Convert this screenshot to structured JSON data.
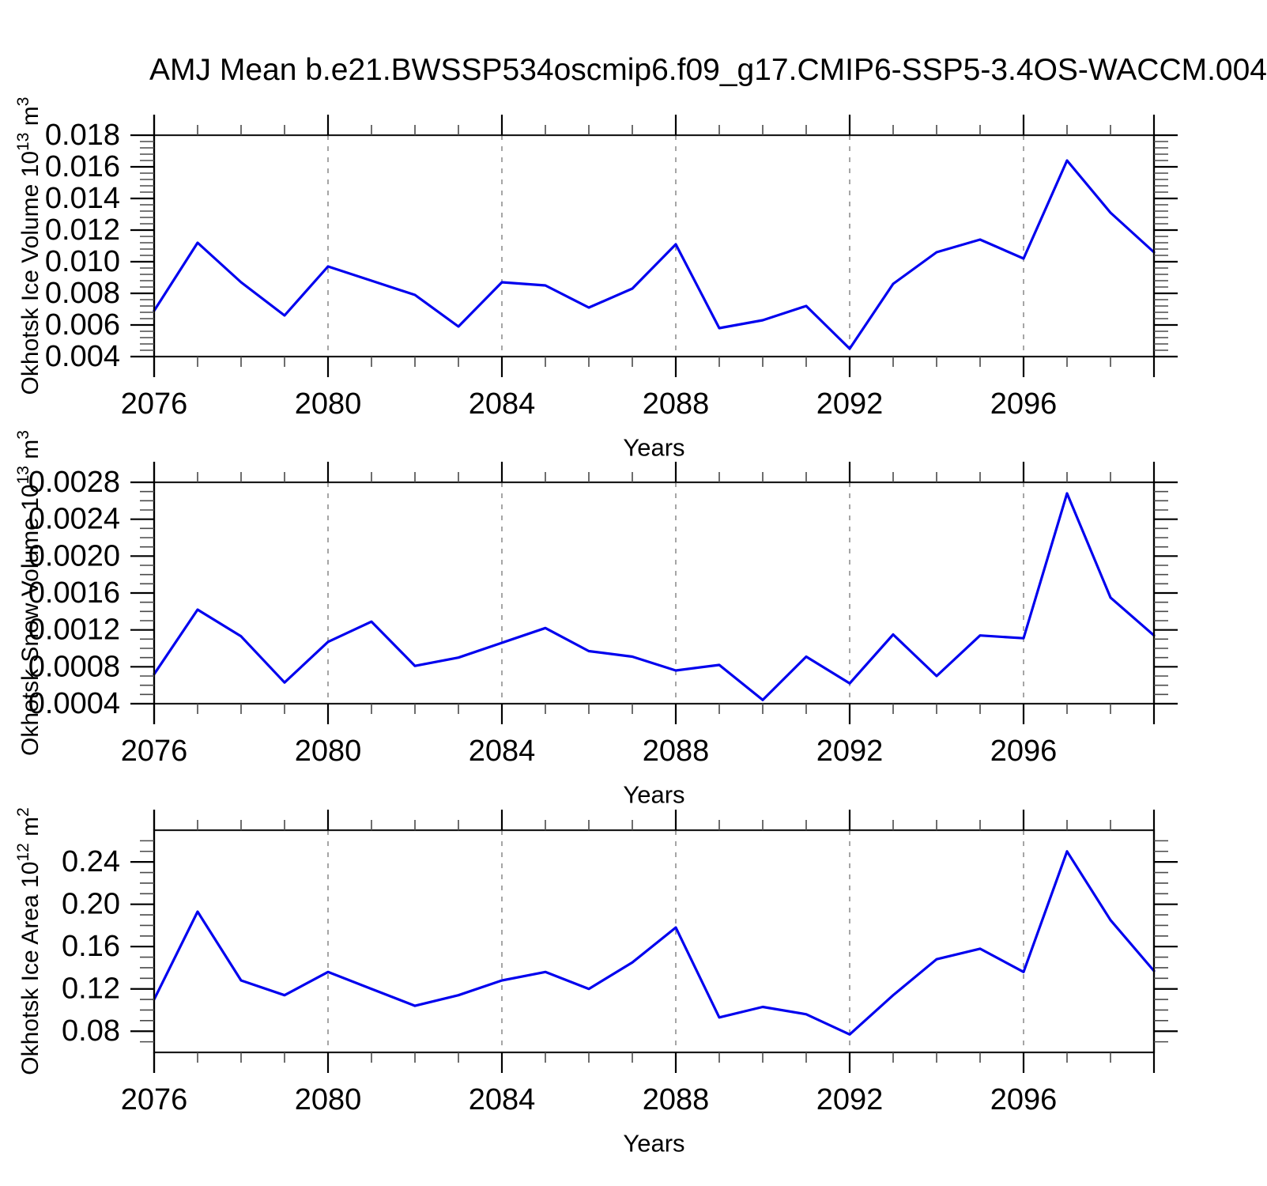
{
  "title": "AMJ Mean b.e21.BWSSP534oscmip6.f09_g17.CMIP6-SSP5-3.4OS-WACCM.004",
  "line_color": "#0000ee",
  "chart_data": [
    {
      "id": "ice-volume",
      "type": "line",
      "ylabel": "Okhotsk Ice Volume 10^13 m^3",
      "ylabel_segments": [
        {
          "text": "Okhotsk Ice Volume 10"
        },
        {
          "text": "13",
          "sup": true
        },
        {
          "text": " m"
        },
        {
          "text": "3",
          "sup": true
        }
      ],
      "xlabel": "Years",
      "xlim": [
        2076,
        2099
      ],
      "ylim": [
        0.004,
        0.018
      ],
      "xticks": [
        2076,
        2080,
        2084,
        2088,
        2092,
        2096
      ],
      "xtick_labels": [
        "2076",
        "2080",
        "2084",
        "2088",
        "2092",
        "2096"
      ],
      "xminor_step": 1,
      "yticks": [
        0.004,
        0.006,
        0.008,
        0.01,
        0.012,
        0.014,
        0.016,
        0.018
      ],
      "ytick_labels": [
        "0.004",
        "0.006",
        "0.008",
        "0.010",
        "0.012",
        "0.014",
        "0.016",
        "0.018"
      ],
      "ytick_step": 0.002,
      "yminor_step": 0.0004,
      "grid_x": [
        2080,
        2084,
        2088,
        2092,
        2096
      ],
      "grid_style": "dashed-vertical",
      "line_color": "#0000ee",
      "x": [
        2076,
        2077,
        2078,
        2079,
        2080,
        2081,
        2082,
        2083,
        2084,
        2085,
        2086,
        2087,
        2088,
        2089,
        2090,
        2091,
        2092,
        2093,
        2094,
        2095,
        2096,
        2097,
        2098,
        2099
      ],
      "values": [
        0.0069,
        0.0112,
        0.0087,
        0.0066,
        0.0097,
        0.0088,
        0.0079,
        0.0059,
        0.0087,
        0.0085,
        0.0071,
        0.0083,
        0.0111,
        0.0058,
        0.0063,
        0.0072,
        0.0045,
        0.0086,
        0.0106,
        0.0114,
        0.0102,
        0.0164,
        0.0131,
        0.0106
      ]
    },
    {
      "id": "snow-volume",
      "type": "line",
      "ylabel": "Okhotsk Snow Volume 10^13 m^3",
      "ylabel_segments": [
        {
          "text": "Okhotsk Snow Volume 10"
        },
        {
          "text": "13",
          "sup": true
        },
        {
          "text": " m"
        },
        {
          "text": "3",
          "sup": true
        }
      ],
      "xlabel": "Years",
      "xlim": [
        2076,
        2099
      ],
      "ylim": [
        0.0004,
        0.0028
      ],
      "xticks": [
        2076,
        2080,
        2084,
        2088,
        2092,
        2096
      ],
      "xtick_labels": [
        "2076",
        "2080",
        "2084",
        "2088",
        "2092",
        "2096"
      ],
      "xminor_step": 1,
      "yticks": [
        0.0004,
        0.0008,
        0.0012,
        0.0016,
        0.002,
        0.0024,
        0.0028
      ],
      "ytick_labels": [
        "0.0004",
        "0.0008",
        "0.0012",
        "0.0016",
        "0.0020",
        "0.0024",
        "0.0028"
      ],
      "ytick_step": 0.0004,
      "yminor_step": 0.0001,
      "grid_x": [
        2080,
        2084,
        2088,
        2092,
        2096
      ],
      "grid_style": "dashed-vertical",
      "line_color": "#0000ee",
      "x": [
        2076,
        2077,
        2078,
        2079,
        2080,
        2081,
        2082,
        2083,
        2084,
        2085,
        2086,
        2087,
        2088,
        2089,
        2090,
        2091,
        2092,
        2093,
        2094,
        2095,
        2096,
        2097,
        2098,
        2099
      ],
      "values": [
        0.00072,
        0.00142,
        0.00113,
        0.00063,
        0.00107,
        0.00129,
        0.00081,
        0.0009,
        0.00106,
        0.00122,
        0.00097,
        0.00091,
        0.00076,
        0.00082,
        0.00044,
        0.00091,
        0.00062,
        0.00115,
        0.0007,
        0.00114,
        0.00111,
        0.00268,
        0.00155,
        0.00114
      ]
    },
    {
      "id": "ice-area",
      "type": "line",
      "ylabel": "Okhotsk Ice Area 10^12 m^2",
      "ylabel_segments": [
        {
          "text": "Okhotsk Ice Area 10"
        },
        {
          "text": "12",
          "sup": true
        },
        {
          "text": " m"
        },
        {
          "text": "2",
          "sup": true
        }
      ],
      "xlabel": "Years",
      "xlim": [
        2076,
        2099
      ],
      "ylim": [
        0.06,
        0.27
      ],
      "xticks": [
        2076,
        2080,
        2084,
        2088,
        2092,
        2096
      ],
      "xtick_labels": [
        "2076",
        "2080",
        "2084",
        "2088",
        "2092",
        "2096"
      ],
      "xminor_step": 1,
      "yticks": [
        0.08,
        0.12,
        0.16,
        0.2,
        0.24
      ],
      "ytick_labels": [
        "0.08",
        "0.12",
        "0.16",
        "0.20",
        "0.24"
      ],
      "ytick_step": 0.04,
      "yminor_step": 0.01,
      "grid_x": [
        2080,
        2084,
        2088,
        2092,
        2096
      ],
      "grid_style": "dashed-vertical",
      "line_color": "#0000ee",
      "x": [
        2076,
        2077,
        2078,
        2079,
        2080,
        2081,
        2082,
        2083,
        2084,
        2085,
        2086,
        2087,
        2088,
        2089,
        2090,
        2091,
        2092,
        2093,
        2094,
        2095,
        2096,
        2097,
        2098,
        2099
      ],
      "values": [
        0.11,
        0.193,
        0.128,
        0.114,
        0.136,
        0.12,
        0.104,
        0.114,
        0.128,
        0.136,
        0.12,
        0.145,
        0.178,
        0.093,
        0.103,
        0.096,
        0.077,
        0.114,
        0.148,
        0.158,
        0.136,
        0.25,
        0.185,
        0.137
      ]
    }
  ]
}
